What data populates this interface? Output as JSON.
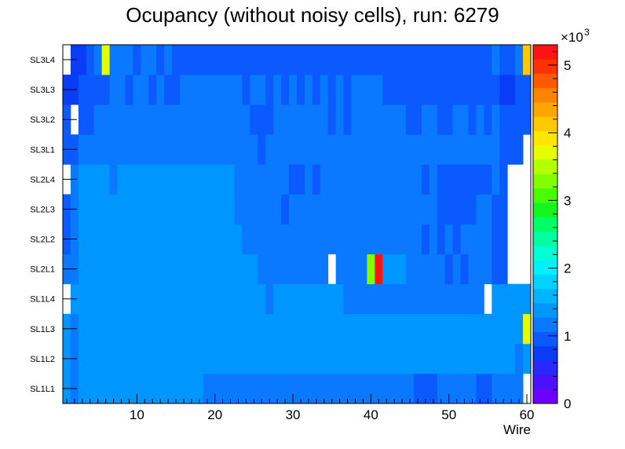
{
  "chart_data": {
    "type": "heatmap",
    "title": "Ocupancy (without noisy cells), run: 6279",
    "xlabel": "Wire",
    "ylabel": "",
    "xlim": [
      0.5,
      60.5
    ],
    "x_ticks": [
      "10",
      "20",
      "30",
      "40",
      "50",
      "60"
    ],
    "y_categories": [
      "SL1L1",
      "SL1L2",
      "SL1L3",
      "SL1L4",
      "SL2L1",
      "SL2L2",
      "SL2L3",
      "SL2L4",
      "SL3L1",
      "SL3L2",
      "SL3L3",
      "SL3L4"
    ],
    "colorbar": {
      "min": 0,
      "max": 5300,
      "multiplier_label": "×10",
      "multiplier_exp": "3",
      "ticks": [
        "0",
        "1",
        "2",
        "3",
        "4",
        "5"
      ],
      "colors": [
        "#6E00FF",
        "#4A10FF",
        "#2828FF",
        "#0A3CF5",
        "#0A5AFF",
        "#0A78FF",
        "#0096FF",
        "#00B4FF",
        "#00D2FF",
        "#00F0FF",
        "#00FFD2",
        "#00FFA0",
        "#00FF64",
        "#14F51E",
        "#46FF00",
        "#82FF00",
        "#B4FF00",
        "#E6FF00",
        "#FFE600",
        "#FFC800",
        "#FFA500",
        "#FF8200",
        "#FF5A00",
        "#FF3200",
        "#FF1414"
      ]
    },
    "rows": [
      {
        "name": "SL1L1",
        "segments": [
          [
            1,
            1,
            1350
          ],
          [
            2,
            2,
            1220
          ],
          [
            3,
            6,
            1400
          ],
          [
            7,
            7,
            1300
          ],
          [
            8,
            14,
            1400
          ],
          [
            15,
            17,
            1300
          ],
          [
            18,
            18,
            1400
          ],
          [
            19,
            45,
            1250
          ],
          [
            46,
            48,
            1000
          ],
          [
            49,
            53,
            1250
          ],
          [
            54,
            55,
            1000
          ],
          [
            56,
            59,
            1250
          ]
        ]
      },
      {
        "name": "SL1L2",
        "segments": [
          [
            1,
            1,
            1350
          ],
          [
            2,
            2,
            1230
          ],
          [
            3,
            56,
            1420
          ],
          [
            57,
            58,
            1300
          ],
          [
            59,
            59,
            1220
          ],
          [
            60,
            60,
            1300
          ]
        ]
      },
      {
        "name": "SL1L3",
        "segments": [
          [
            1,
            1,
            1350
          ],
          [
            2,
            2,
            1250
          ],
          [
            3,
            25,
            1420
          ],
          [
            26,
            26,
            1300
          ],
          [
            27,
            40,
            1420
          ],
          [
            41,
            41,
            1300
          ],
          [
            42,
            45,
            1420
          ],
          [
            46,
            46,
            1300
          ],
          [
            47,
            49,
            1420
          ],
          [
            50,
            50,
            1300
          ],
          [
            51,
            53,
            1420
          ],
          [
            54,
            54,
            1300
          ],
          [
            55,
            55,
            1420
          ],
          [
            56,
            58,
            1300
          ],
          [
            59,
            59,
            1420
          ],
          [
            60,
            60,
            3800
          ]
        ]
      },
      {
        "name": "SL1L4",
        "segments": [
          [
            1,
            1,
            -1
          ],
          [
            2,
            11,
            1300
          ],
          [
            12,
            14,
            1400
          ],
          [
            15,
            26,
            1300
          ],
          [
            27,
            27,
            1150
          ],
          [
            28,
            36,
            1300
          ],
          [
            37,
            54,
            1150
          ],
          [
            55,
            55,
            -1
          ],
          [
            56,
            56,
            1300
          ],
          [
            57,
            60,
            1300
          ]
        ]
      },
      {
        "name": "SL2L1",
        "segments": [
          [
            1,
            1,
            1100
          ],
          [
            2,
            2,
            1250
          ],
          [
            3,
            5,
            1420
          ],
          [
            6,
            9,
            1300
          ],
          [
            10,
            16,
            1420
          ],
          [
            17,
            17,
            1300
          ],
          [
            18,
            18,
            1420
          ],
          [
            19,
            25,
            1300
          ],
          [
            26,
            34,
            1150
          ],
          [
            35,
            35,
            -1
          ],
          [
            36,
            39,
            1150
          ],
          [
            40,
            40,
            3300
          ],
          [
            41,
            41,
            5200
          ],
          [
            42,
            44,
            1300
          ],
          [
            45,
            49,
            1150
          ],
          [
            50,
            50,
            1000
          ],
          [
            51,
            51,
            1150
          ],
          [
            52,
            52,
            1000
          ],
          [
            53,
            55,
            1150
          ],
          [
            56,
            57,
            1000
          ],
          [
            58,
            60,
            -1
          ]
        ]
      },
      {
        "name": "SL2L2",
        "segments": [
          [
            1,
            1,
            1000
          ],
          [
            2,
            2,
            1250
          ],
          [
            3,
            3,
            1300
          ],
          [
            4,
            6,
            1420
          ],
          [
            7,
            9,
            1300
          ],
          [
            10,
            15,
            1420
          ],
          [
            16,
            23,
            1300
          ],
          [
            24,
            46,
            1150
          ],
          [
            47,
            47,
            1000
          ],
          [
            48,
            48,
            1150
          ],
          [
            49,
            49,
            1000
          ],
          [
            50,
            50,
            1150
          ],
          [
            51,
            51,
            1000
          ],
          [
            52,
            55,
            1150
          ],
          [
            56,
            57,
            1000
          ],
          [
            58,
            60,
            -1
          ]
        ]
      },
      {
        "name": "SL2L3",
        "segments": [
          [
            1,
            1,
            1000
          ],
          [
            2,
            2,
            1250
          ],
          [
            3,
            4,
            1420
          ],
          [
            5,
            9,
            1300
          ],
          [
            10,
            12,
            1420
          ],
          [
            13,
            22,
            1300
          ],
          [
            23,
            28,
            1150
          ],
          [
            29,
            29,
            1000
          ],
          [
            30,
            48,
            1150
          ],
          [
            49,
            53,
            1000
          ],
          [
            54,
            55,
            1150
          ],
          [
            56,
            57,
            1000
          ],
          [
            58,
            60,
            -1
          ]
        ]
      },
      {
        "name": "SL2L4",
        "segments": [
          [
            1,
            1,
            -1
          ],
          [
            2,
            2,
            1250
          ],
          [
            3,
            4,
            1420
          ],
          [
            5,
            6,
            1300
          ],
          [
            7,
            7,
            1150
          ],
          [
            8,
            13,
            1300
          ],
          [
            14,
            14,
            1420
          ],
          [
            15,
            22,
            1300
          ],
          [
            23,
            29,
            1150
          ],
          [
            30,
            31,
            1000
          ],
          [
            32,
            32,
            1150
          ],
          [
            33,
            33,
            1000
          ],
          [
            34,
            46,
            1150
          ],
          [
            47,
            47,
            1000
          ],
          [
            48,
            48,
            1150
          ],
          [
            49,
            55,
            1000
          ],
          [
            56,
            56,
            1150
          ],
          [
            57,
            57,
            1000
          ],
          [
            58,
            60,
            -1
          ]
        ]
      },
      {
        "name": "SL3L1",
        "segments": [
          [
            1,
            1,
            980
          ],
          [
            2,
            2,
            1000
          ],
          [
            3,
            25,
            1150
          ],
          [
            26,
            26,
            1000
          ],
          [
            27,
            56,
            1150
          ],
          [
            57,
            59,
            1000
          ],
          [
            60,
            60,
            -1
          ]
        ]
      },
      {
        "name": "SL3L2",
        "segments": [
          [
            1,
            1,
            980
          ],
          [
            2,
            2,
            -1
          ],
          [
            3,
            4,
            1000
          ],
          [
            5,
            24,
            1150
          ],
          [
            25,
            27,
            1000
          ],
          [
            28,
            34,
            1150
          ],
          [
            35,
            35,
            1000
          ],
          [
            36,
            36,
            1150
          ],
          [
            37,
            37,
            1000
          ],
          [
            38,
            44,
            1150
          ],
          [
            45,
            46,
            1000
          ],
          [
            47,
            48,
            1150
          ],
          [
            49,
            50,
            1000
          ],
          [
            51,
            52,
            1150
          ],
          [
            53,
            53,
            1000
          ],
          [
            54,
            54,
            1150
          ],
          [
            55,
            55,
            1000
          ],
          [
            56,
            56,
            1150
          ],
          [
            57,
            57,
            1000
          ],
          [
            58,
            60,
            1000
          ]
        ]
      },
      {
        "name": "SL3L3",
        "segments": [
          [
            1,
            1,
            700
          ],
          [
            2,
            2,
            800
          ],
          [
            3,
            6,
            1000
          ],
          [
            7,
            8,
            1150
          ],
          [
            9,
            9,
            1000
          ],
          [
            10,
            11,
            1150
          ],
          [
            12,
            12,
            1000
          ],
          [
            13,
            13,
            1150
          ],
          [
            14,
            15,
            1000
          ],
          [
            16,
            23,
            1150
          ],
          [
            24,
            24,
            1000
          ],
          [
            25,
            26,
            1150
          ],
          [
            27,
            27,
            1000
          ],
          [
            28,
            28,
            1150
          ],
          [
            29,
            29,
            1000
          ],
          [
            30,
            30,
            1150
          ],
          [
            31,
            31,
            1000
          ],
          [
            32,
            32,
            1150
          ],
          [
            33,
            33,
            1000
          ],
          [
            34,
            34,
            1150
          ],
          [
            35,
            35,
            1000
          ],
          [
            36,
            36,
            1150
          ],
          [
            37,
            37,
            1000
          ],
          [
            38,
            41,
            1150
          ],
          [
            42,
            56,
            1000
          ],
          [
            57,
            58,
            700
          ],
          [
            59,
            60,
            1000
          ]
        ]
      },
      {
        "name": "SL3L4",
        "segments": [
          [
            1,
            1,
            -1
          ],
          [
            2,
            3,
            700
          ],
          [
            4,
            4,
            1000
          ],
          [
            5,
            5,
            1150
          ],
          [
            6,
            6,
            3800
          ],
          [
            7,
            9,
            1150
          ],
          [
            10,
            10,
            1000
          ],
          [
            11,
            12,
            1150
          ],
          [
            13,
            13,
            1000
          ],
          [
            14,
            14,
            1150
          ],
          [
            15,
            55,
            1000
          ],
          [
            56,
            56,
            1150
          ],
          [
            57,
            58,
            1000
          ],
          [
            59,
            59,
            1150
          ],
          [
            60,
            60,
            4200
          ]
        ]
      }
    ]
  }
}
